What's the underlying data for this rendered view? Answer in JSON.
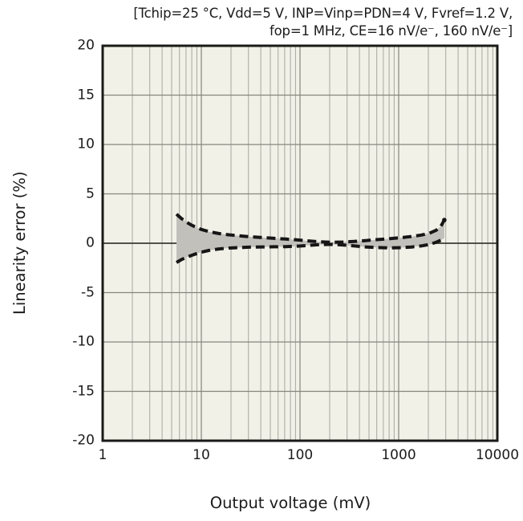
{
  "title": {
    "line1": "[Tchip=25 °C, Vdd=5 V, INP=Vinp=PDN=4 V, Fvref=1.2 V,",
    "line2": "fop=1 MHz, CE=16 nV/e⁻, 160 nV/e⁻]"
  },
  "colors": {
    "plot_background": "#f2f1e8",
    "grid_minor": "#a8a79f",
    "grid_major": "#87867e",
    "zero_line": "#3a3a35",
    "frame": "#1a1a18",
    "band_fill": "#c1c0bb",
    "line": "#161616",
    "text": "#1b1b1b"
  },
  "chart_data": {
    "type": "area",
    "title": "[Tchip=25 °C, Vdd=5 V, INP=Vinp=PDN=4 V, Fvref=1.2 V, fop=1 MHz, CE=16 nV/e⁻, 160 nV/e⁻]",
    "xlabel": "Output voltage (mV)",
    "ylabel": "Linearity error (%)",
    "x_scale": "log",
    "xlim": [
      1,
      10000
    ],
    "ylim": [
      -20,
      20
    ],
    "x_ticks": [
      1,
      10,
      100,
      1000,
      10000
    ],
    "y_ticks": [
      20,
      15,
      10,
      5,
      0,
      -5,
      -10,
      -15,
      -20
    ],
    "grid": true,
    "legend": "none",
    "band_between_series": true,
    "end_marker": {
      "x": 2900,
      "y": 2.35
    },
    "series": [
      {
        "name": "upper-linearity-error-bound",
        "style": "dashed",
        "points": [
          [
            5.6,
            2.95
          ],
          [
            6.3,
            2.5
          ],
          [
            7.1,
            2.12
          ],
          [
            8,
            1.82
          ],
          [
            9,
            1.58
          ],
          [
            10,
            1.4
          ],
          [
            12,
            1.17
          ],
          [
            15,
            0.98
          ],
          [
            19,
            0.85
          ],
          [
            25,
            0.74
          ],
          [
            32,
            0.65
          ],
          [
            42,
            0.57
          ],
          [
            55,
            0.5
          ],
          [
            72,
            0.42
          ],
          [
            95,
            0.33
          ],
          [
            125,
            0.23
          ],
          [
            160,
            0.15
          ],
          [
            210,
            0.1
          ],
          [
            270,
            0.12
          ],
          [
            350,
            0.18
          ],
          [
            460,
            0.27
          ],
          [
            620,
            0.37
          ],
          [
            820,
            0.46
          ],
          [
            1050,
            0.56
          ],
          [
            1350,
            0.68
          ],
          [
            1700,
            0.83
          ],
          [
            2050,
            1.02
          ],
          [
            2400,
            1.32
          ],
          [
            2680,
            1.72
          ],
          [
            2900,
            2.35
          ]
        ]
      },
      {
        "name": "lower-linearity-error-bound",
        "style": "dashed",
        "points": [
          [
            5.6,
            -1.95
          ],
          [
            6.3,
            -1.65
          ],
          [
            7.1,
            -1.42
          ],
          [
            8,
            -1.22
          ],
          [
            9,
            -1.04
          ],
          [
            10,
            -0.9
          ],
          [
            12,
            -0.72
          ],
          [
            15,
            -0.58
          ],
          [
            19,
            -0.49
          ],
          [
            25,
            -0.43
          ],
          [
            32,
            -0.39
          ],
          [
            42,
            -0.37
          ],
          [
            55,
            -0.36
          ],
          [
            72,
            -0.34
          ],
          [
            95,
            -0.29
          ],
          [
            125,
            -0.21
          ],
          [
            160,
            -0.14
          ],
          [
            210,
            -0.11
          ],
          [
            270,
            -0.17
          ],
          [
            350,
            -0.27
          ],
          [
            460,
            -0.37
          ],
          [
            620,
            -0.44
          ],
          [
            820,
            -0.47
          ],
          [
            1050,
            -0.45
          ],
          [
            1350,
            -0.38
          ],
          [
            1700,
            -0.27
          ],
          [
            2050,
            -0.12
          ],
          [
            2400,
            0.1
          ],
          [
            2680,
            0.32
          ],
          [
            2900,
            0.52
          ]
        ]
      }
    ]
  }
}
